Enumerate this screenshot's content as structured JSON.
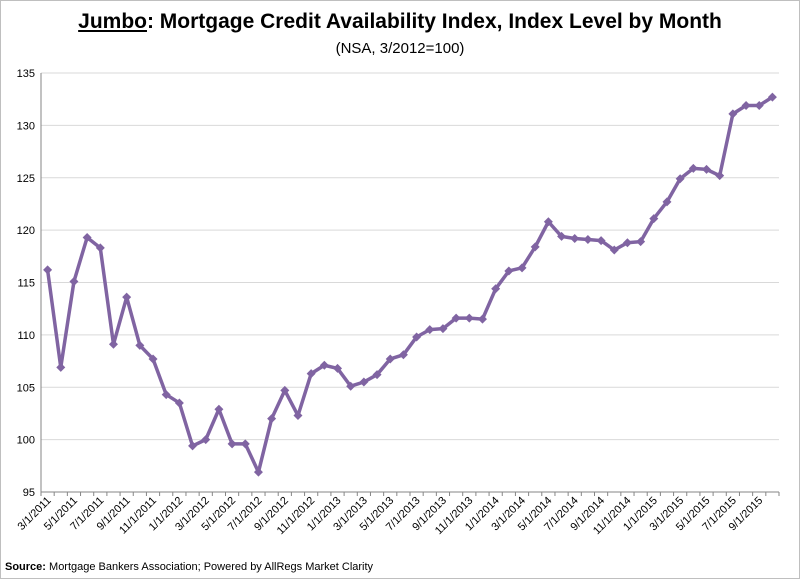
{
  "title": {
    "underlined": "Jumbo",
    "rest": ": Mortgage Credit Availability Index, Index Level by Month",
    "subtitle": "(NSA, 3/2012=100)"
  },
  "source": {
    "label": "Source:",
    "text": " Mortgage Bankers Association; Powered by AllRegs Market Clarity"
  },
  "colors": {
    "line": "#8064a2",
    "grid": "#d9d9d9",
    "axis": "#868686"
  },
  "chart_data": {
    "type": "line",
    "title": "Jumbo: Mortgage Credit Availability Index, Index Level by Month",
    "subtitle": "(NSA, 3/2012=100)",
    "xlabel": "",
    "ylabel": "",
    "ylim": [
      95,
      135
    ],
    "yticks": [
      95,
      100,
      105,
      110,
      115,
      120,
      125,
      130,
      135
    ],
    "grid": true,
    "legend": "none",
    "x_tick_labels": [
      "3/1/2011",
      "5/1/2011",
      "7/1/2011",
      "9/1/2011",
      "11/1/2011",
      "1/1/2012",
      "3/1/2012",
      "5/1/2012",
      "7/1/2012",
      "9/1/2012",
      "11/1/2012",
      "1/1/2013",
      "3/1/2013",
      "5/1/2013",
      "7/1/2013",
      "9/1/2013",
      "11/1/2013",
      "1/1/2014",
      "3/1/2014",
      "5/1/2014",
      "7/1/2014",
      "9/1/2014",
      "11/1/2014",
      "1/1/2015",
      "3/1/2015",
      "5/1/2015",
      "7/1/2015",
      "9/1/2015"
    ],
    "x": [
      "3/1/2011",
      "4/1/2011",
      "5/1/2011",
      "6/1/2011",
      "7/1/2011",
      "8/1/2011",
      "9/1/2011",
      "10/1/2011",
      "11/1/2011",
      "12/1/2011",
      "1/1/2012",
      "2/1/2012",
      "3/1/2012",
      "4/1/2012",
      "5/1/2012",
      "6/1/2012",
      "7/1/2012",
      "8/1/2012",
      "9/1/2012",
      "10/1/2012",
      "11/1/2012",
      "12/1/2012",
      "1/1/2013",
      "2/1/2013",
      "3/1/2013",
      "4/1/2013",
      "5/1/2013",
      "6/1/2013",
      "7/1/2013",
      "8/1/2013",
      "9/1/2013",
      "10/1/2013",
      "11/1/2013",
      "12/1/2013",
      "1/1/2014",
      "2/1/2014",
      "3/1/2014",
      "4/1/2014",
      "5/1/2014",
      "6/1/2014",
      "7/1/2014",
      "8/1/2014",
      "9/1/2014",
      "10/1/2014",
      "11/1/2014",
      "12/1/2014",
      "1/1/2015",
      "2/1/2015",
      "3/1/2015",
      "4/1/2015",
      "5/1/2015",
      "6/1/2015",
      "7/1/2015",
      "8/1/2015",
      "9/1/2015",
      "10/1/2015"
    ],
    "series": [
      {
        "values": [
          116.2,
          106.9,
          115.1,
          119.3,
          118.3,
          109.1,
          113.6,
          109.0,
          107.7,
          104.3,
          103.5,
          99.4,
          100.0,
          102.9,
          99.6,
          99.6,
          96.9,
          102.0,
          104.7,
          102.3,
          106.3,
          107.1,
          106.8,
          105.1,
          105.5,
          106.2,
          107.7,
          108.1,
          109.8,
          110.5,
          110.6,
          111.6,
          111.6,
          111.5,
          114.4,
          116.1,
          116.4,
          118.4,
          120.8,
          119.4,
          119.2,
          119.1,
          119.0,
          118.1,
          118.8,
          118.9,
          121.1,
          122.7,
          124.9,
          125.9,
          125.8,
          125.2,
          131.1,
          131.9,
          131.9,
          132.7
        ]
      }
    ]
  }
}
